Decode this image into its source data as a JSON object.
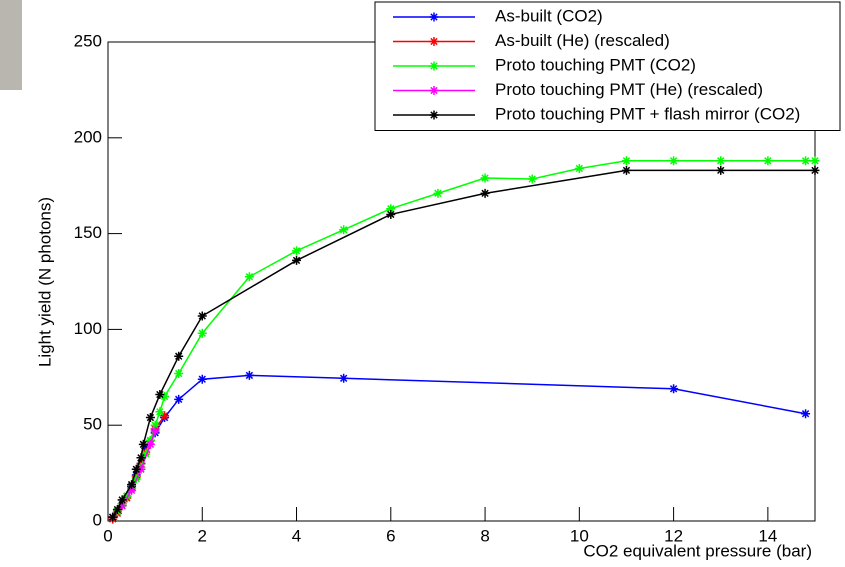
{
  "chart_data": {
    "type": "line",
    "y_label": "Light yield (N photons)",
    "x_label": "CO2 equivalent pressure (bar)",
    "xlim": [
      0,
      15
    ],
    "ylim": [
      0,
      250
    ],
    "xticks": [
      0,
      2,
      4,
      6,
      8,
      10,
      12,
      14
    ],
    "yticks": [
      0,
      50,
      100,
      150,
      200,
      250
    ],
    "legend": "top-right",
    "series": [
      {
        "name": "As-built (CO2)",
        "color": "#0000ff",
        "x": [
          0.1,
          0.2,
          0.3,
          0.4,
          0.5,
          0.6,
          0.7,
          0.8,
          0.9,
          1.0,
          1.2,
          1.5,
          2,
          3,
          5,
          12,
          14.8
        ],
        "values": [
          2,
          5,
          9,
          13,
          18,
          24,
          30,
          38,
          42,
          46,
          54,
          63.5,
          74,
          76,
          74.5,
          69,
          56
        ]
      },
      {
        "name": "As-built (He) (rescaled)",
        "color": "#ff0000",
        "x": [
          0.1,
          0.2,
          0.3,
          0.4,
          0.5,
          0.6,
          0.7,
          0.8,
          0.9,
          1.0,
          1.2
        ],
        "values": [
          1,
          4,
          8,
          12,
          17,
          23,
          30,
          36,
          42,
          48,
          55
        ]
      },
      {
        "name": "Proto touching PMT (CO2)",
        "color": "#00ff00",
        "x": [
          0.1,
          0.2,
          0.3,
          0.4,
          0.5,
          0.6,
          0.7,
          0.8,
          0.9,
          1.0,
          1.1,
          1.2,
          1.5,
          2,
          3,
          4,
          5,
          6,
          7,
          8,
          9,
          10,
          11,
          12,
          13,
          14,
          14.8,
          15
        ],
        "values": [
          2,
          5,
          9,
          13,
          17,
          22,
          28,
          35,
          42,
          50,
          57,
          65,
          77,
          98,
          127.5,
          141,
          152,
          163,
          171,
          179,
          178.5,
          184,
          188,
          188,
          188,
          188,
          188,
          188
        ]
      },
      {
        "name": "Proto touching PMT (He) (rescaled)",
        "color": "#ff00ff",
        "x": [
          0.1,
          0.3,
          0.5,
          0.7,
          0.9,
          1.0
        ],
        "values": [
          2,
          8,
          16,
          27,
          40,
          47
        ]
      },
      {
        "name": "Proto touching PMT + flash mirror (CO2)",
        "color": "#000000",
        "x": [
          0.1,
          0.2,
          0.3,
          0.5,
          0.6,
          0.7,
          0.75,
          0.9,
          1.1,
          1.5,
          2,
          4,
          6,
          8,
          11,
          13,
          15
        ],
        "values": [
          2,
          6,
          11,
          19,
          27,
          33,
          40,
          54,
          66,
          86,
          107,
          136,
          160,
          171,
          183,
          183,
          183
        ]
      }
    ]
  }
}
